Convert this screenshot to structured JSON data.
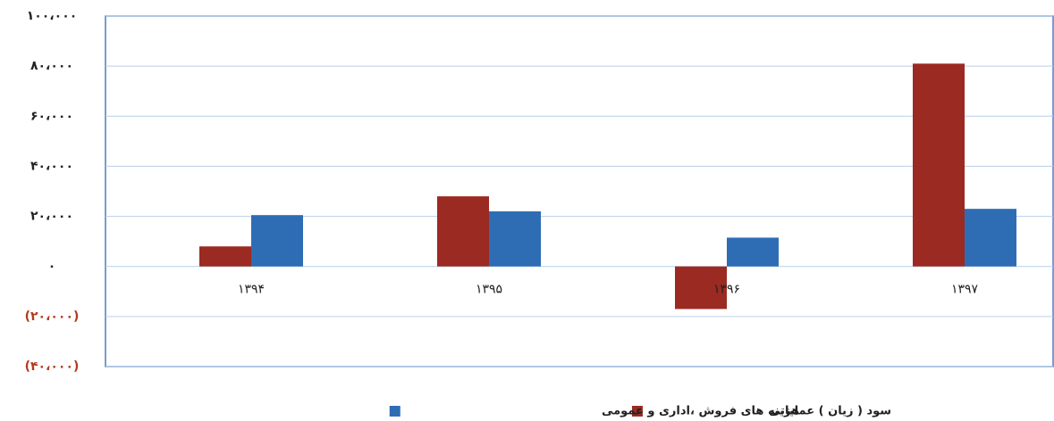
{
  "chart_data": {
    "type": "bar",
    "categories": [
      "۱۳۹۴",
      "۱۳۹۵",
      "۱۳۹۶",
      "۱۳۹۷"
    ],
    "series": [
      {
        "name": "سود ( زیان ) عملیاتی",
        "color": "#9b2a22",
        "values": [
          8000,
          28000,
          -17000,
          81000
        ]
      },
      {
        "name": "هزینه های فروش ،اداری و عمومی",
        "color": "#2e6db4",
        "values": [
          20500,
          22000,
          11500,
          23000
        ]
      }
    ],
    "ylim": [
      -40000,
      100000
    ],
    "yticks": [
      {
        "value": 100000,
        "label": "۱۰۰،۰۰۰"
      },
      {
        "value": 80000,
        "label": "۸۰،۰۰۰"
      },
      {
        "value": 60000,
        "label": "۶۰،۰۰۰"
      },
      {
        "value": 40000,
        "label": "۴۰،۰۰۰"
      },
      {
        "value": 20000,
        "label": "۲۰،۰۰۰"
      },
      {
        "value": 0,
        "label": "۰"
      },
      {
        "value": -20000,
        "label": "(۲۰،۰۰۰)"
      },
      {
        "value": -40000,
        "label": "(۴۰،۰۰۰)"
      }
    ],
    "negative_tick_color": "#b23a1e",
    "grid": true,
    "legend": "bottom"
  }
}
